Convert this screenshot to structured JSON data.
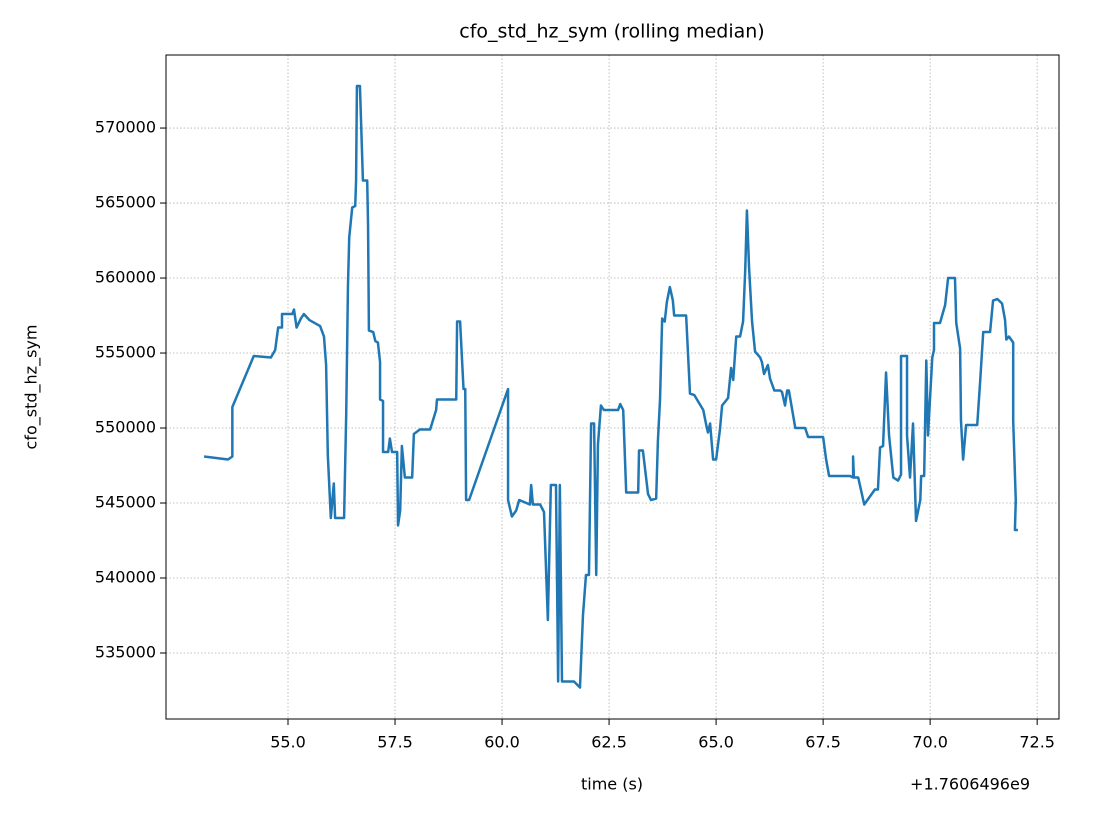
{
  "chart_data": {
    "type": "line",
    "title": "cfo_std_hz_sym (rolling median)",
    "xlabel": "time (s)",
    "ylabel": "cfo_std_hz_sym",
    "x_offset_label": "+1.7606496e9",
    "color": "#1f77b4",
    "grid": true,
    "xlim": [
      52.15,
      73.01
    ],
    "ylim": [
      530600,
      574870
    ],
    "xticks": [
      {
        "value": 55,
        "label": "55.0"
      },
      57.5,
      {
        "value": 60,
        "label": "60.0"
      },
      62.5,
      {
        "value": 65,
        "label": "65.0"
      },
      67.5,
      {
        "value": 70,
        "label": "70.0"
      },
      72.5
    ],
    "yticks": [
      535000,
      540000,
      545000,
      550000,
      555000,
      560000,
      565000,
      570000
    ],
    "x": [
      53.04,
      53.6,
      53.7,
      53.7,
      54.2,
      54.6,
      54.7,
      54.77,
      54.86,
      54.86,
      55.1,
      55.14,
      55.2,
      55.3,
      55.37,
      55.5,
      55.75,
      55.84,
      55.89,
      55.93,
      56.0,
      56.07,
      56.1,
      56.31,
      56.36,
      56.4,
      56.43,
      56.5,
      56.57,
      56.59,
      56.61,
      56.68,
      56.75,
      56.85,
      56.87,
      56.89,
      56.99,
      57.04,
      57.1,
      57.15,
      57.15,
      57.22,
      57.22,
      57.34,
      57.38,
      57.43,
      57.55,
      57.57,
      57.62,
      57.66,
      57.73,
      57.9,
      57.94,
      58.08,
      58.32,
      58.46,
      58.48,
      58.93,
      58.95,
      59.02,
      59.1,
      59.14,
      59.16,
      59.23,
      60.14,
      60.14,
      60.23,
      60.33,
      60.4,
      60.65,
      60.68,
      60.72,
      60.89,
      60.98,
      61.07,
      61.14,
      61.26,
      61.31,
      61.35,
      61.4,
      61.68,
      61.82,
      61.89,
      61.96,
      62.03,
      62.08,
      62.15,
      62.2,
      62.24,
      62.31,
      62.38,
      62.71,
      62.76,
      62.83,
      62.9,
      63.18,
      63.2,
      63.29,
      63.41,
      63.48,
      63.6,
      63.64,
      63.69,
      63.74,
      63.8,
      63.85,
      63.92,
      63.99,
      64.02,
      64.3,
      64.39,
      64.49,
      64.7,
      64.77,
      64.81,
      64.86,
      64.93,
      65.0,
      65.09,
      65.14,
      65.28,
      65.35,
      65.4,
      65.47,
      65.56,
      65.63,
      65.68,
      65.72,
      65.77,
      65.84,
      65.91,
      66.03,
      66.07,
      66.12,
      66.21,
      66.26,
      66.36,
      66.5,
      66.54,
      66.61,
      66.66,
      66.7,
      66.85,
      67.08,
      67.15,
      67.5,
      67.57,
      67.64,
      68.13,
      68.2,
      68.2,
      68.22,
      68.32,
      68.46,
      68.71,
      68.78,
      68.83,
      68.9,
      68.97,
      69.04,
      69.14,
      69.25,
      69.32,
      69.32,
      69.46,
      69.46,
      69.53,
      69.6,
      69.67,
      69.77,
      69.79,
      69.86,
      69.91,
      69.95,
      70.05,
      70.09,
      70.09,
      70.23,
      70.35,
      70.42,
      70.58,
      70.61,
      70.7,
      70.72,
      70.77,
      70.84,
      71.1,
      71.17,
      71.24,
      71.4,
      71.43,
      71.47,
      71.57,
      71.68,
      71.75,
      71.78,
      71.84,
      71.94,
      71.94,
      72.0,
      71.98,
      72.05
    ],
    "values": [
      548100,
      547900,
      548100,
      551400,
      554800,
      554700,
      555200,
      556700,
      556700,
      557600,
      557600,
      557900,
      556700,
      557300,
      557600,
      557200,
      556800,
      556100,
      554200,
      548200,
      544000,
      546300,
      544000,
      544000,
      551000,
      559400,
      562700,
      564700,
      564800,
      566500,
      572800,
      572800,
      566500,
      566500,
      563500,
      556500,
      556400,
      555800,
      555700,
      554400,
      551900,
      551800,
      548400,
      548400,
      549300,
      548400,
      548400,
      543500,
      544500,
      548800,
      546700,
      546700,
      549600,
      549900,
      549900,
      551200,
      551900,
      551900,
      557100,
      557100,
      552600,
      552600,
      545200,
      545200,
      552600,
      545200,
      544100,
      544500,
      545200,
      544900,
      546200,
      544900,
      544900,
      544400,
      537200,
      546200,
      546200,
      533100,
      546200,
      533100,
      533100,
      532700,
      537500,
      540200,
      540200,
      550300,
      550300,
      540200,
      548900,
      551500,
      551200,
      551200,
      551600,
      551200,
      545700,
      545700,
      548500,
      548500,
      545600,
      545200,
      545300,
      549100,
      551900,
      557300,
      557100,
      558400,
      559400,
      558500,
      557500,
      557500,
      552300,
      552200,
      551200,
      550200,
      549700,
      550300,
      547900,
      547900,
      549900,
      551500,
      552000,
      554000,
      553200,
      556100,
      556100,
      557100,
      560500,
      564500,
      560700,
      557100,
      555100,
      554700,
      554400,
      553600,
      554200,
      553300,
      552500,
      552500,
      552400,
      551500,
      552500,
      552500,
      550000,
      550000,
      549400,
      549400,
      547900,
      546800,
      546800,
      546700,
      548100,
      546700,
      546700,
      544900,
      545900,
      545900,
      548700,
      548800,
      553700,
      549500,
      546700,
      546500,
      546900,
      554800,
      554800,
      549500,
      546700,
      550300,
      543800,
      545200,
      546800,
      546800,
      554500,
      549500,
      554700,
      555200,
      557000,
      557000,
      558200,
      560000,
      560000,
      557000,
      555300,
      550500,
      547900,
      550200,
      550200,
      553200,
      556400,
      556400,
      557300,
      558500,
      558600,
      558300,
      557200,
      555900,
      556100,
      555700,
      550500,
      545200,
      543200,
      543200
    ]
  }
}
